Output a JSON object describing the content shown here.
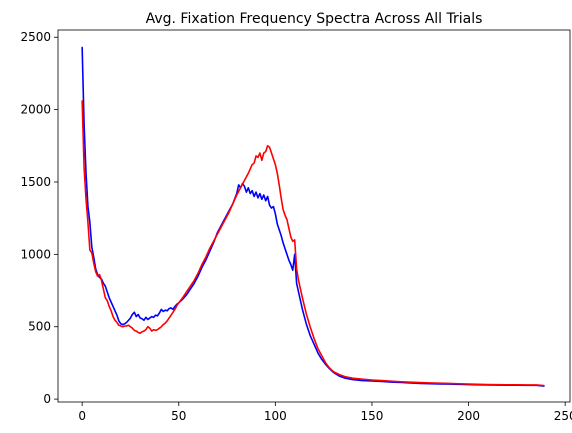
{
  "chart_data": {
    "type": "line",
    "title": "Avg. Fixation Frequency Spectra Across All Trials",
    "xlabel": "",
    "ylabel": "",
    "xlim": [
      -12.5,
      252.5
    ],
    "ylim": [
      -20,
      2550
    ],
    "xticks": [
      0,
      50,
      100,
      150,
      200,
      250
    ],
    "yticks": [
      0,
      500,
      1000,
      1500,
      2000,
      2500
    ],
    "grid": false,
    "series": [
      {
        "color": "#0000ff",
        "points": [
          [
            0,
            2430
          ],
          [
            1,
            1900
          ],
          [
            2,
            1560
          ],
          [
            3,
            1330
          ],
          [
            4,
            1220
          ],
          [
            5,
            1050
          ],
          [
            6,
            980
          ],
          [
            7,
            900
          ],
          [
            8,
            860
          ],
          [
            9,
            840
          ],
          [
            10,
            830
          ],
          [
            11,
            800
          ],
          [
            12,
            780
          ],
          [
            13,
            740
          ],
          [
            14,
            700
          ],
          [
            15,
            670
          ],
          [
            16,
            640
          ],
          [
            17,
            610
          ],
          [
            18,
            580
          ],
          [
            19,
            540
          ],
          [
            20,
            520
          ],
          [
            21,
            515
          ],
          [
            22,
            520
          ],
          [
            23,
            530
          ],
          [
            24,
            545
          ],
          [
            25,
            560
          ],
          [
            26,
            585
          ],
          [
            27,
            600
          ],
          [
            28,
            570
          ],
          [
            29,
            585
          ],
          [
            30,
            560
          ],
          [
            31,
            555
          ],
          [
            32,
            545
          ],
          [
            33,
            565
          ],
          [
            34,
            550
          ],
          [
            35,
            560
          ],
          [
            36,
            570
          ],
          [
            37,
            565
          ],
          [
            38,
            580
          ],
          [
            39,
            575
          ],
          [
            40,
            595
          ],
          [
            41,
            620
          ],
          [
            42,
            605
          ],
          [
            43,
            615
          ],
          [
            44,
            610
          ],
          [
            45,
            625
          ],
          [
            46,
            630
          ],
          [
            47,
            620
          ],
          [
            48,
            640
          ],
          [
            49,
            655
          ],
          [
            50,
            665
          ],
          [
            52,
            690
          ],
          [
            54,
            720
          ],
          [
            56,
            760
          ],
          [
            58,
            800
          ],
          [
            60,
            850
          ],
          [
            62,
            910
          ],
          [
            64,
            960
          ],
          [
            66,
            1020
          ],
          [
            68,
            1080
          ],
          [
            70,
            1150
          ],
          [
            72,
            1200
          ],
          [
            74,
            1250
          ],
          [
            76,
            1300
          ],
          [
            78,
            1350
          ],
          [
            80,
            1420
          ],
          [
            81,
            1480
          ],
          [
            82,
            1460
          ],
          [
            83,
            1490
          ],
          [
            84,
            1470
          ],
          [
            85,
            1430
          ],
          [
            86,
            1460
          ],
          [
            87,
            1420
          ],
          [
            88,
            1440
          ],
          [
            89,
            1400
          ],
          [
            90,
            1430
          ],
          [
            91,
            1390
          ],
          [
            92,
            1420
          ],
          [
            93,
            1380
          ],
          [
            94,
            1410
          ],
          [
            95,
            1370
          ],
          [
            96,
            1400
          ],
          [
            97,
            1340
          ],
          [
            98,
            1320
          ],
          [
            99,
            1330
          ],
          [
            100,
            1280
          ],
          [
            101,
            1210
          ],
          [
            102,
            1170
          ],
          [
            103,
            1130
          ],
          [
            104,
            1080
          ],
          [
            105,
            1040
          ],
          [
            106,
            1000
          ],
          [
            107,
            960
          ],
          [
            108,
            930
          ],
          [
            109,
            890
          ],
          [
            110,
            1000
          ],
          [
            111,
            800
          ],
          [
            112,
            740
          ],
          [
            114,
            620
          ],
          [
            116,
            520
          ],
          [
            118,
            440
          ],
          [
            120,
            380
          ],
          [
            122,
            320
          ],
          [
            124,
            275
          ],
          [
            126,
            240
          ],
          [
            128,
            210
          ],
          [
            130,
            185
          ],
          [
            133,
            160
          ],
          [
            136,
            145
          ],
          [
            140,
            135
          ],
          [
            145,
            128
          ],
          [
            150,
            125
          ],
          [
            155,
            122
          ],
          [
            160,
            118
          ],
          [
            165,
            115
          ],
          [
            170,
            112
          ],
          [
            175,
            108
          ],
          [
            180,
            106
          ],
          [
            185,
            105
          ],
          [
            190,
            104
          ],
          [
            195,
            102
          ],
          [
            200,
            100
          ],
          [
            205,
            99
          ],
          [
            210,
            98
          ],
          [
            215,
            97
          ],
          [
            220,
            96
          ],
          [
            225,
            96
          ],
          [
            230,
            95
          ],
          [
            235,
            95
          ],
          [
            239,
            90
          ]
        ]
      },
      {
        "color": "#ff0000",
        "points": [
          [
            0,
            2060
          ],
          [
            1,
            1600
          ],
          [
            2,
            1380
          ],
          [
            3,
            1220
          ],
          [
            4,
            1030
          ],
          [
            5,
            1010
          ],
          [
            6,
            940
          ],
          [
            7,
            880
          ],
          [
            8,
            850
          ],
          [
            9,
            860
          ],
          [
            10,
            820
          ],
          [
            11,
            760
          ],
          [
            12,
            700
          ],
          [
            13,
            680
          ],
          [
            14,
            640
          ],
          [
            15,
            610
          ],
          [
            16,
            570
          ],
          [
            17,
            545
          ],
          [
            18,
            530
          ],
          [
            19,
            510
          ],
          [
            20,
            505
          ],
          [
            21,
            500
          ],
          [
            22,
            505
          ],
          [
            23,
            505
          ],
          [
            24,
            510
          ],
          [
            25,
            500
          ],
          [
            26,
            490
          ],
          [
            27,
            475
          ],
          [
            28,
            470
          ],
          [
            29,
            460
          ],
          [
            30,
            455
          ],
          [
            31,
            465
          ],
          [
            32,
            470
          ],
          [
            33,
            480
          ],
          [
            34,
            500
          ],
          [
            35,
            490
          ],
          [
            36,
            470
          ],
          [
            37,
            480
          ],
          [
            38,
            475
          ],
          [
            39,
            480
          ],
          [
            40,
            490
          ],
          [
            41,
            500
          ],
          [
            42,
            515
          ],
          [
            43,
            525
          ],
          [
            44,
            540
          ],
          [
            45,
            560
          ],
          [
            46,
            580
          ],
          [
            47,
            600
          ],
          [
            48,
            620
          ],
          [
            49,
            645
          ],
          [
            50,
            665
          ],
          [
            52,
            700
          ],
          [
            54,
            740
          ],
          [
            56,
            780
          ],
          [
            58,
            820
          ],
          [
            60,
            870
          ],
          [
            62,
            930
          ],
          [
            64,
            980
          ],
          [
            66,
            1040
          ],
          [
            68,
            1090
          ],
          [
            70,
            1140
          ],
          [
            72,
            1190
          ],
          [
            74,
            1240
          ],
          [
            76,
            1290
          ],
          [
            78,
            1350
          ],
          [
            80,
            1410
          ],
          [
            82,
            1460
          ],
          [
            84,
            1510
          ],
          [
            86,
            1560
          ],
          [
            88,
            1620
          ],
          [
            89,
            1630
          ],
          [
            90,
            1680
          ],
          [
            91,
            1670
          ],
          [
            92,
            1700
          ],
          [
            93,
            1650
          ],
          [
            94,
            1700
          ],
          [
            95,
            1710
          ],
          [
            96,
            1750
          ],
          [
            97,
            1740
          ],
          [
            98,
            1700
          ],
          [
            99,
            1660
          ],
          [
            100,
            1620
          ],
          [
            101,
            1560
          ],
          [
            102,
            1480
          ],
          [
            103,
            1390
          ],
          [
            104,
            1310
          ],
          [
            105,
            1270
          ],
          [
            106,
            1240
          ],
          [
            107,
            1180
          ],
          [
            108,
            1120
          ],
          [
            109,
            1090
          ],
          [
            110,
            1100
          ],
          [
            111,
            900
          ],
          [
            112,
            820
          ],
          [
            114,
            700
          ],
          [
            116,
            590
          ],
          [
            118,
            500
          ],
          [
            120,
            420
          ],
          [
            122,
            350
          ],
          [
            124,
            300
          ],
          [
            126,
            250
          ],
          [
            128,
            215
          ],
          [
            130,
            190
          ],
          [
            133,
            170
          ],
          [
            136,
            155
          ],
          [
            140,
            145
          ],
          [
            145,
            138
          ],
          [
            150,
            132
          ],
          [
            155,
            128
          ],
          [
            160,
            124
          ],
          [
            165,
            120
          ],
          [
            170,
            117
          ],
          [
            175,
            114
          ],
          [
            180,
            112
          ],
          [
            185,
            110
          ],
          [
            190,
            108
          ],
          [
            195,
            106
          ],
          [
            200,
            104
          ],
          [
            205,
            102
          ],
          [
            210,
            101
          ],
          [
            215,
            100
          ],
          [
            220,
            99
          ],
          [
            225,
            99
          ],
          [
            230,
            98
          ],
          [
            235,
            98
          ],
          [
            239,
            94
          ]
        ]
      }
    ]
  }
}
